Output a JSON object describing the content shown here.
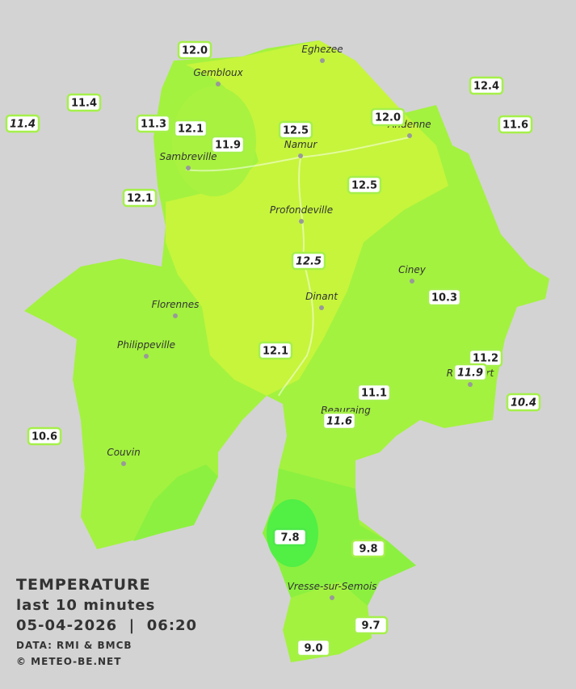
{
  "legend": {
    "title": "TEMPERATURE",
    "subtitle": "last 10 minutes",
    "datetime": "05-04-2026  |  06:20",
    "source": "DATA: RMI & BMCB",
    "credit": "© METEO-BE.NET"
  },
  "towns": [
    "Eghezee",
    "Gembloux",
    "Andenne",
    "Namur",
    "Sambreville",
    "Profondeville",
    "Ciney",
    "Dinant",
    "Florennes",
    "Philippeville",
    "Rochefort",
    "Beauraing",
    "Couvin",
    "Vresse-sur-Semois"
  ],
  "stations": [
    {
      "label": "12.0",
      "italic": false
    },
    {
      "label": "11.4",
      "italic": false
    },
    {
      "label": "11.4",
      "italic": true
    },
    {
      "label": "11.3",
      "italic": false
    },
    {
      "label": "12.1",
      "italic": false
    },
    {
      "label": "11.9",
      "italic": false
    },
    {
      "label": "12.5",
      "italic": false
    },
    {
      "label": "12.0",
      "italic": false
    },
    {
      "label": "12.4",
      "italic": false
    },
    {
      "label": "11.6",
      "italic": false
    },
    {
      "label": "12.1",
      "italic": false
    },
    {
      "label": "12.5",
      "italic": false
    },
    {
      "label": "12.5",
      "italic": true
    },
    {
      "label": "10.3",
      "italic": false
    },
    {
      "label": "12.1",
      "italic": false
    },
    {
      "label": "11.2",
      "italic": false
    },
    {
      "label": "11.9",
      "italic": true
    },
    {
      "label": "11.1",
      "italic": false
    },
    {
      "label": "10.4",
      "italic": true
    },
    {
      "label": "11.6",
      "italic": true
    },
    {
      "label": "10.6",
      "italic": false
    },
    {
      "label": "7.8",
      "italic": false
    },
    {
      "label": "9.8",
      "italic": false
    },
    {
      "label": "9.7",
      "italic": false
    },
    {
      "label": "9.0",
      "italic": false
    }
  ]
}
